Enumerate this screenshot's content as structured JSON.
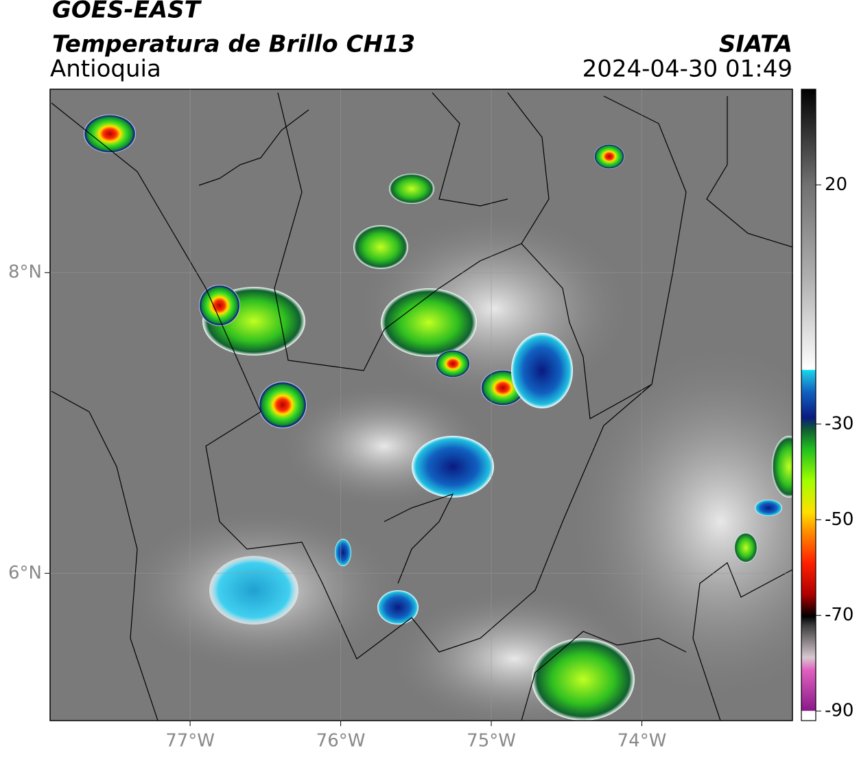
{
  "header": {
    "title": "GOES-EAST",
    "subtitle": "Temperatura de Brillo CH13",
    "region": "Antioquia",
    "source": "SIATA",
    "datetime": "2024-04-30 01:49"
  },
  "map": {
    "xlim": [
      -77.93,
      -73.0
    ],
    "ylim": [
      5.02,
      9.22
    ],
    "xticks": [
      {
        "value": -77,
        "label": "77°W"
      },
      {
        "value": -76,
        "label": "76°W"
      },
      {
        "value": -75,
        "label": "75°W"
      },
      {
        "value": -74,
        "label": "74°W"
      }
    ],
    "yticks": [
      {
        "value": 8,
        "label": "8°N"
      },
      {
        "value": 6,
        "label": "6°N"
      }
    ],
    "grid": true
  },
  "colorbar": {
    "lim": [
      -92,
      40
    ],
    "ticks": [
      20,
      -30,
      -50,
      -70,
      -90
    ]
  }
}
